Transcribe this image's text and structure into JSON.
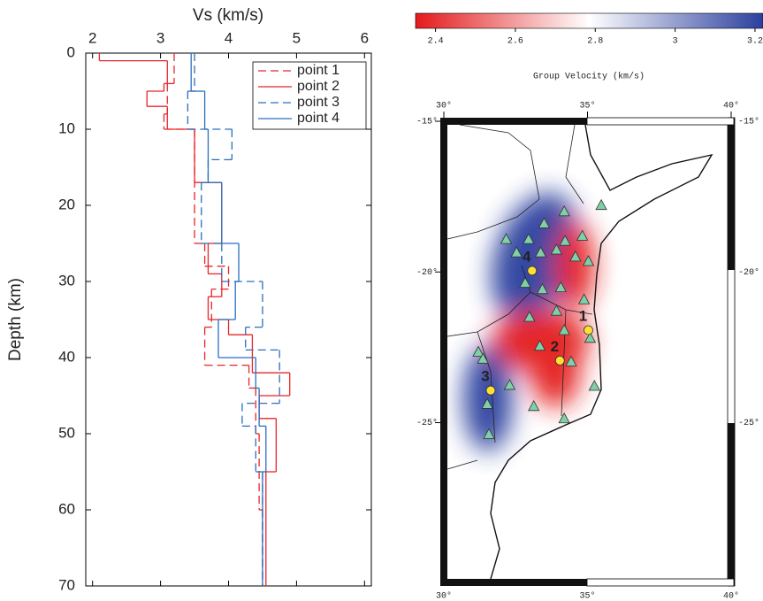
{
  "chart_data": [
    {
      "type": "step-profile",
      "xlabel": "Vs (km/s)",
      "ylabel": "Depth (km)",
      "xlim": [
        1.9,
        6.1
      ],
      "xticks": [
        2,
        3,
        4,
        5,
        6
      ],
      "ylim": [
        0,
        70
      ],
      "yticks": [
        0,
        10,
        20,
        30,
        40,
        50,
        60,
        70
      ],
      "series": [
        {
          "name": "point 1",
          "color": "#e8252a",
          "dashed": true,
          "depths": [
            0,
            4,
            8,
            10,
            15,
            20,
            25,
            28,
            31,
            36,
            41,
            44,
            50,
            60,
            70
          ],
          "vs": [
            3.2,
            3.1,
            3.05,
            3.5,
            3.5,
            3.5,
            3.65,
            4.0,
            3.75,
            3.65,
            4.3,
            4.4,
            4.45,
            4.5
          ]
        },
        {
          "name": "point 2",
          "color": "#e8252a",
          "dashed": false,
          "depths": [
            0,
            1,
            4,
            5,
            7,
            10,
            17,
            25,
            29,
            32,
            35,
            37,
            42,
            45,
            48,
            55,
            70
          ],
          "vs": [
            2.1,
            3.1,
            3.05,
            2.8,
            3.1,
            3.5,
            3.9,
            3.7,
            3.9,
            3.7,
            4.0,
            4.35,
            4.9,
            4.45,
            4.7,
            4.55
          ]
        },
        {
          "name": "point 3",
          "color": "#2a6fc0",
          "dashed": true,
          "depths": [
            0,
            5,
            10,
            14,
            17,
            25,
            30,
            36,
            39,
            46,
            49,
            55,
            70
          ],
          "vs": [
            3.5,
            3.4,
            4.05,
            3.7,
            3.6,
            3.9,
            4.5,
            4.25,
            4.75,
            4.2,
            4.4,
            4.5
          ]
        },
        {
          "name": "point 4",
          "color": "#2a6fc0",
          "dashed": false,
          "depths": [
            0,
            5,
            10,
            17,
            25,
            30,
            35,
            40,
            44,
            49,
            55,
            70
          ],
          "vs": [
            3.45,
            3.65,
            3.7,
            3.9,
            4.15,
            4.1,
            3.85,
            4.4,
            4.45,
            4.55,
            4.5
          ]
        }
      ]
    },
    {
      "type": "map",
      "colorbar_label": "Group Velocity (km/s)",
      "clim": [
        2.35,
        3.22
      ],
      "cticks": [
        2.4,
        2.6,
        2.8,
        3.0,
        3.2
      ],
      "xlim": [
        30,
        40
      ],
      "ylim": [
        -30.3,
        -15
      ],
      "xticks": [
        {
          "value": 30,
          "label": "30°"
        },
        {
          "value": 35,
          "label": "35°"
        },
        {
          "value": 40,
          "label": "40°"
        }
      ],
      "yticks": [
        {
          "value": -15,
          "label": "-15°"
        },
        {
          "value": -20,
          "label": "-20°"
        },
        {
          "value": -25,
          "label": "-25°"
        }
      ],
      "points": [
        {
          "label": "1",
          "lon": 35.03,
          "lat": -21.93
        },
        {
          "label": "2",
          "lon": 34.04,
          "lat": -22.94
        },
        {
          "label": "3",
          "lon": 31.63,
          "lat": -23.93
        },
        {
          "label": "4",
          "lon": 33.07,
          "lat": -19.96
        }
      ],
      "stations": {
        "lon": [
          35.48,
          34.19,
          33.49,
          34.82,
          32.95,
          34.22,
          32.17,
          33.92,
          33.37,
          32.53,
          34.58,
          35.03,
          32.83,
          33.43,
          34.07,
          34.88,
          32.98,
          33.92,
          34.19,
          33.34,
          35.09,
          34.43,
          31.2,
          31.36,
          32.29,
          31.51,
          33.13,
          34.19,
          35.24,
          31.57
        ],
        "lat": [
          -17.78,
          -17.99,
          -18.39,
          -18.8,
          -18.91,
          -18.97,
          -18.91,
          -19.26,
          -19.35,
          -19.35,
          -19.49,
          -19.64,
          -20.36,
          -20.57,
          -20.51,
          -20.91,
          -21.49,
          -21.29,
          -21.93,
          -22.45,
          -22.19,
          -22.97,
          -22.65,
          -22.88,
          -23.75,
          -24.38,
          -24.45,
          -24.86,
          -23.78,
          -25.38
        ]
      }
    }
  ]
}
